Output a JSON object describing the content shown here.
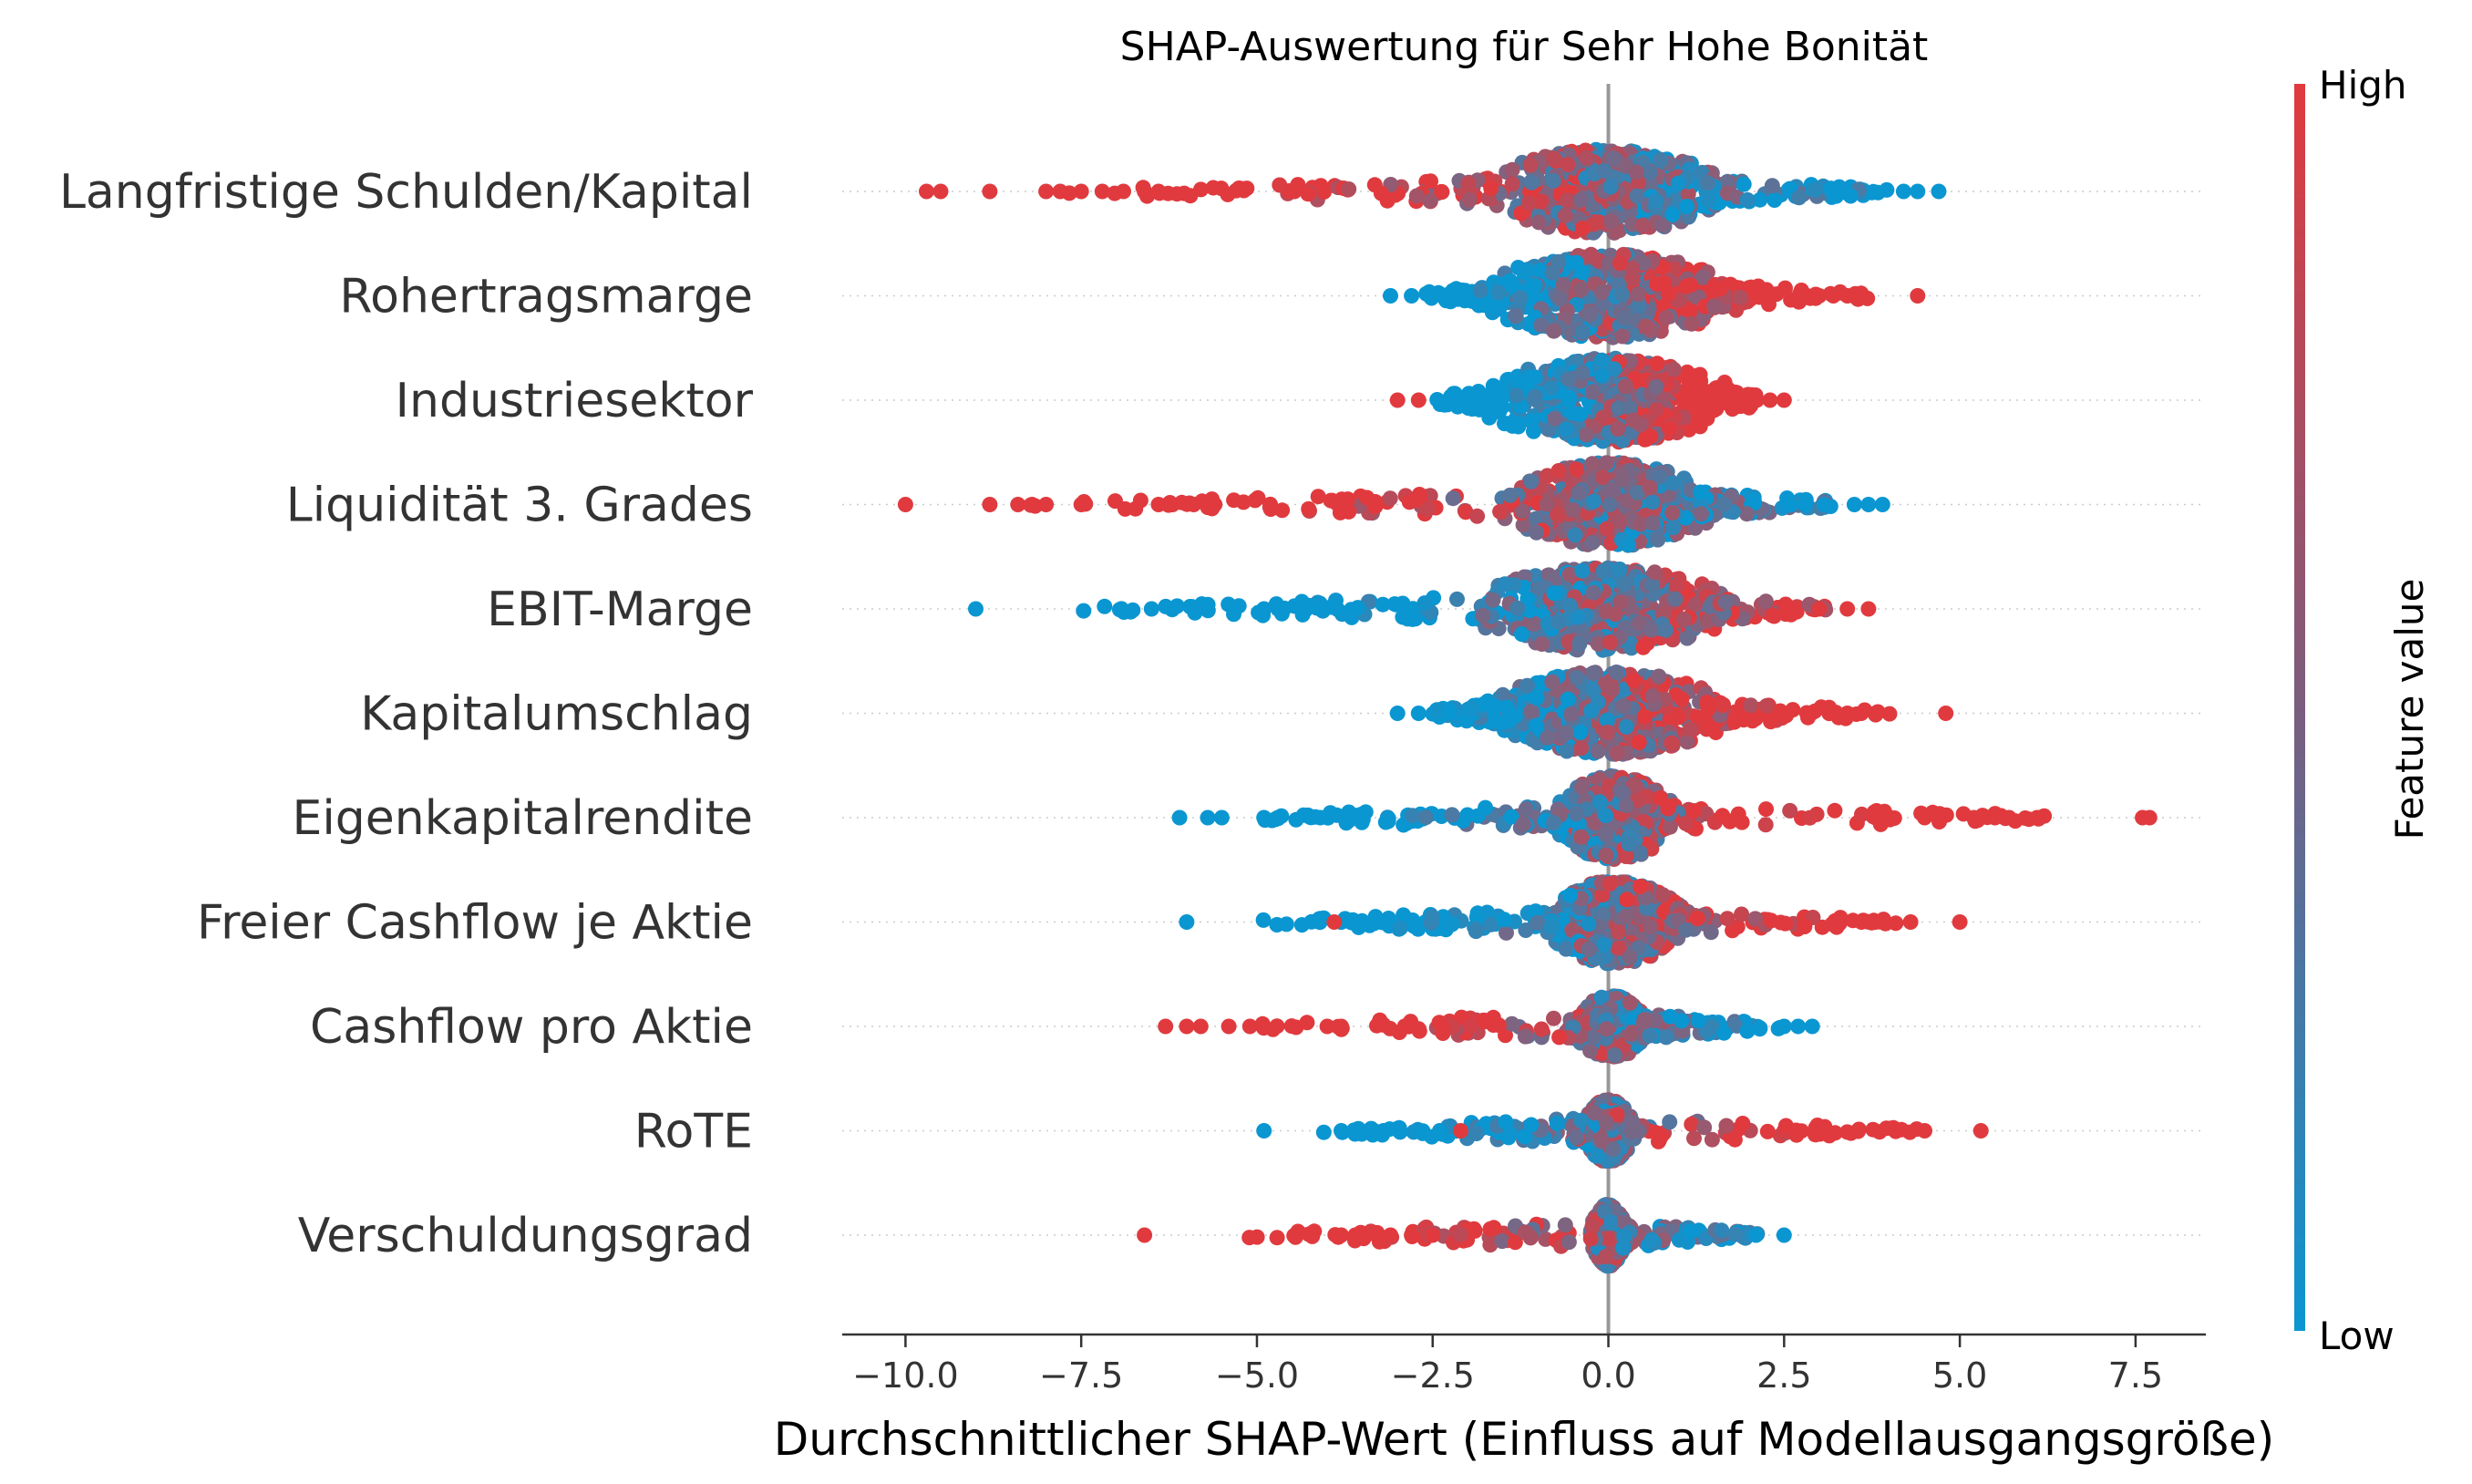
{
  "chart_data": {
    "type": "scatter",
    "subtype": "shap-beeswarm",
    "title": "SHAP-Auswertung für Sehr Hohe Bonität",
    "xlabel": "Durchschnittlicher SHAP-Wert (Einfluss auf Modellausgangsgröße)",
    "xlim": [
      -10.9,
      8.5
    ],
    "xticks": [
      -10.0,
      -7.5,
      -5.0,
      -2.5,
      0.0,
      2.5,
      5.0,
      7.5
    ],
    "xtick_labels": [
      "−10.0",
      "−7.5",
      "−5.0",
      "−2.5",
      "0.0",
      "2.5",
      "5.0",
      "7.5"
    ],
    "grid": false,
    "colorbar": {
      "label": "Feature value",
      "high_label": "High",
      "low_label": "Low",
      "high_color": "#e03a3e",
      "low_color": "#0a96d1"
    },
    "features": [
      {
        "name": "Langfristige Schulden/Kapital",
        "min": -9.7,
        "max": 4.7,
        "core": [
          -1.5,
          1.4
        ],
        "low_side": "right",
        "outliers": [
          [
            -9.7,
            1
          ],
          [
            -9.5,
            1
          ],
          [
            -8.8,
            1
          ],
          [
            -8.0,
            1
          ],
          [
            -7.8,
            1
          ],
          [
            -7.5,
            1
          ],
          [
            -7.2,
            1
          ],
          [
            -6.9,
            1
          ],
          [
            -6.6,
            1
          ],
          [
            -6.4,
            1
          ],
          [
            4.2,
            0
          ],
          [
            4.4,
            0
          ],
          [
            4.7,
            0
          ]
        ]
      },
      {
        "name": "Rohertragsmarge",
        "min": -3.1,
        "max": 4.4,
        "core": [
          -1.5,
          1.5
        ],
        "low_side": "left",
        "outliers": [
          [
            -3.1,
            0
          ],
          [
            -2.8,
            0
          ],
          [
            3.0,
            1
          ],
          [
            3.2,
            1
          ],
          [
            3.4,
            1
          ],
          [
            4.4,
            1
          ]
        ]
      },
      {
        "name": "Industriesektor",
        "min": -3.0,
        "max": 2.5,
        "core": [
          -1.5,
          1.5
        ],
        "low_side": "left",
        "outliers": [
          [
            -3.0,
            1
          ],
          [
            -2.7,
            1
          ],
          [
            2.3,
            1
          ],
          [
            2.5,
            1
          ]
        ]
      },
      {
        "name": "Liquidität 3. Grades",
        "min": -10.0,
        "max": 3.9,
        "core": [
          -1.2,
          1.3
        ],
        "low_side": "right",
        "outliers": [
          [
            -10.0,
            1
          ],
          [
            -8.8,
            1
          ],
          [
            -8.4,
            1
          ],
          [
            -8.2,
            1
          ],
          [
            -8.0,
            1
          ],
          [
            -7.5,
            1
          ],
          [
            -6.4,
            1
          ],
          [
            -6.2,
            1
          ],
          [
            -5.9,
            1
          ],
          [
            -5.6,
            1
          ],
          [
            2.6,
            0
          ],
          [
            2.8,
            0
          ],
          [
            3.5,
            0
          ],
          [
            3.7,
            0
          ],
          [
            3.9,
            0
          ]
        ]
      },
      {
        "name": "EBIT-Marge",
        "min": -9.0,
        "max": 3.7,
        "core": [
          -1.6,
          1.4
        ],
        "low_side": "left",
        "outliers": [
          [
            -9.0,
            0
          ],
          [
            -6.5,
            0
          ],
          [
            -4.9,
            0
          ],
          [
            -4.7,
            0
          ],
          [
            -4.1,
            0
          ],
          [
            3.0,
            1
          ],
          [
            3.4,
            1
          ],
          [
            3.7,
            1
          ]
        ]
      },
      {
        "name": "Kapitalumschlag",
        "min": -3.0,
        "max": 4.8,
        "core": [
          -1.4,
          1.4
        ],
        "low_side": "left",
        "outliers": [
          [
            -3.0,
            0
          ],
          [
            -2.7,
            0
          ],
          [
            3.4,
            1
          ],
          [
            3.6,
            1
          ],
          [
            3.8,
            1
          ],
          [
            4.8,
            1
          ]
        ]
      },
      {
        "name": "Eigenkapitalrendite",
        "min": -6.1,
        "max": 7.7,
        "core": [
          -0.6,
          0.8
        ],
        "low_side": "left",
        "outliers": [
          [
            -6.1,
            0
          ],
          [
            -5.7,
            0
          ],
          [
            -5.5,
            0
          ],
          [
            -4.9,
            0
          ],
          [
            -4.7,
            0
          ],
          [
            -4.1,
            0
          ],
          [
            -3.7,
            0
          ],
          [
            3.8,
            1
          ],
          [
            4.0,
            1
          ],
          [
            4.5,
            1
          ],
          [
            4.7,
            1
          ],
          [
            5.2,
            1
          ],
          [
            5.5,
            1
          ],
          [
            5.7,
            1
          ],
          [
            6.1,
            1
          ],
          [
            7.6,
            1
          ],
          [
            7.7,
            1
          ]
        ]
      },
      {
        "name": "Freier Cashflow je Aktie",
        "min": -6.0,
        "max": 5.0,
        "core": [
          -0.7,
          0.9
        ],
        "low_side": "left",
        "outliers": [
          [
            -6.0,
            0
          ],
          [
            -3.9,
            1
          ],
          [
            3.6,
            1
          ],
          [
            3.8,
            1
          ],
          [
            4.3,
            1
          ],
          [
            5.0,
            1
          ]
        ]
      },
      {
        "name": "Cashflow pro Aktie",
        "min": -6.3,
        "max": 2.9,
        "core": [
          -0.4,
          0.5
        ],
        "low_side": "right",
        "outliers": [
          [
            -6.3,
            1
          ],
          [
            -6.0,
            1
          ],
          [
            -5.8,
            1
          ],
          [
            -5.4,
            1
          ],
          [
            -5.1,
            1
          ],
          [
            -4.0,
            1
          ],
          [
            -3.8,
            1
          ],
          [
            2.5,
            0
          ],
          [
            2.7,
            0
          ],
          [
            2.9,
            0
          ]
        ]
      },
      {
        "name": "RoTE",
        "min": -4.9,
        "max": 5.3,
        "core": [
          -0.3,
          0.3
        ],
        "low_side": "left",
        "outliers": [
          [
            -4.9,
            0
          ],
          [
            -3.8,
            0
          ],
          [
            -3.4,
            0
          ],
          [
            -3.2,
            0
          ],
          [
            -2.4,
            0
          ],
          [
            -2.1,
            1
          ],
          [
            4.5,
            1
          ],
          [
            5.3,
            1
          ]
        ]
      },
      {
        "name": "Verschuldungsgrad",
        "min": -6.6,
        "max": 2.5,
        "core": [
          -0.2,
          0.2
        ],
        "low_side": "right",
        "outliers": [
          [
            -6.6,
            1
          ],
          [
            -3.8,
            1
          ],
          [
            -3.6,
            1
          ],
          [
            -3.3,
            1
          ],
          [
            -3.1,
            1
          ],
          [
            -2.8,
            1
          ],
          [
            -2.5,
            1
          ],
          [
            2.1,
            0
          ],
          [
            2.5,
            0
          ]
        ]
      }
    ]
  }
}
